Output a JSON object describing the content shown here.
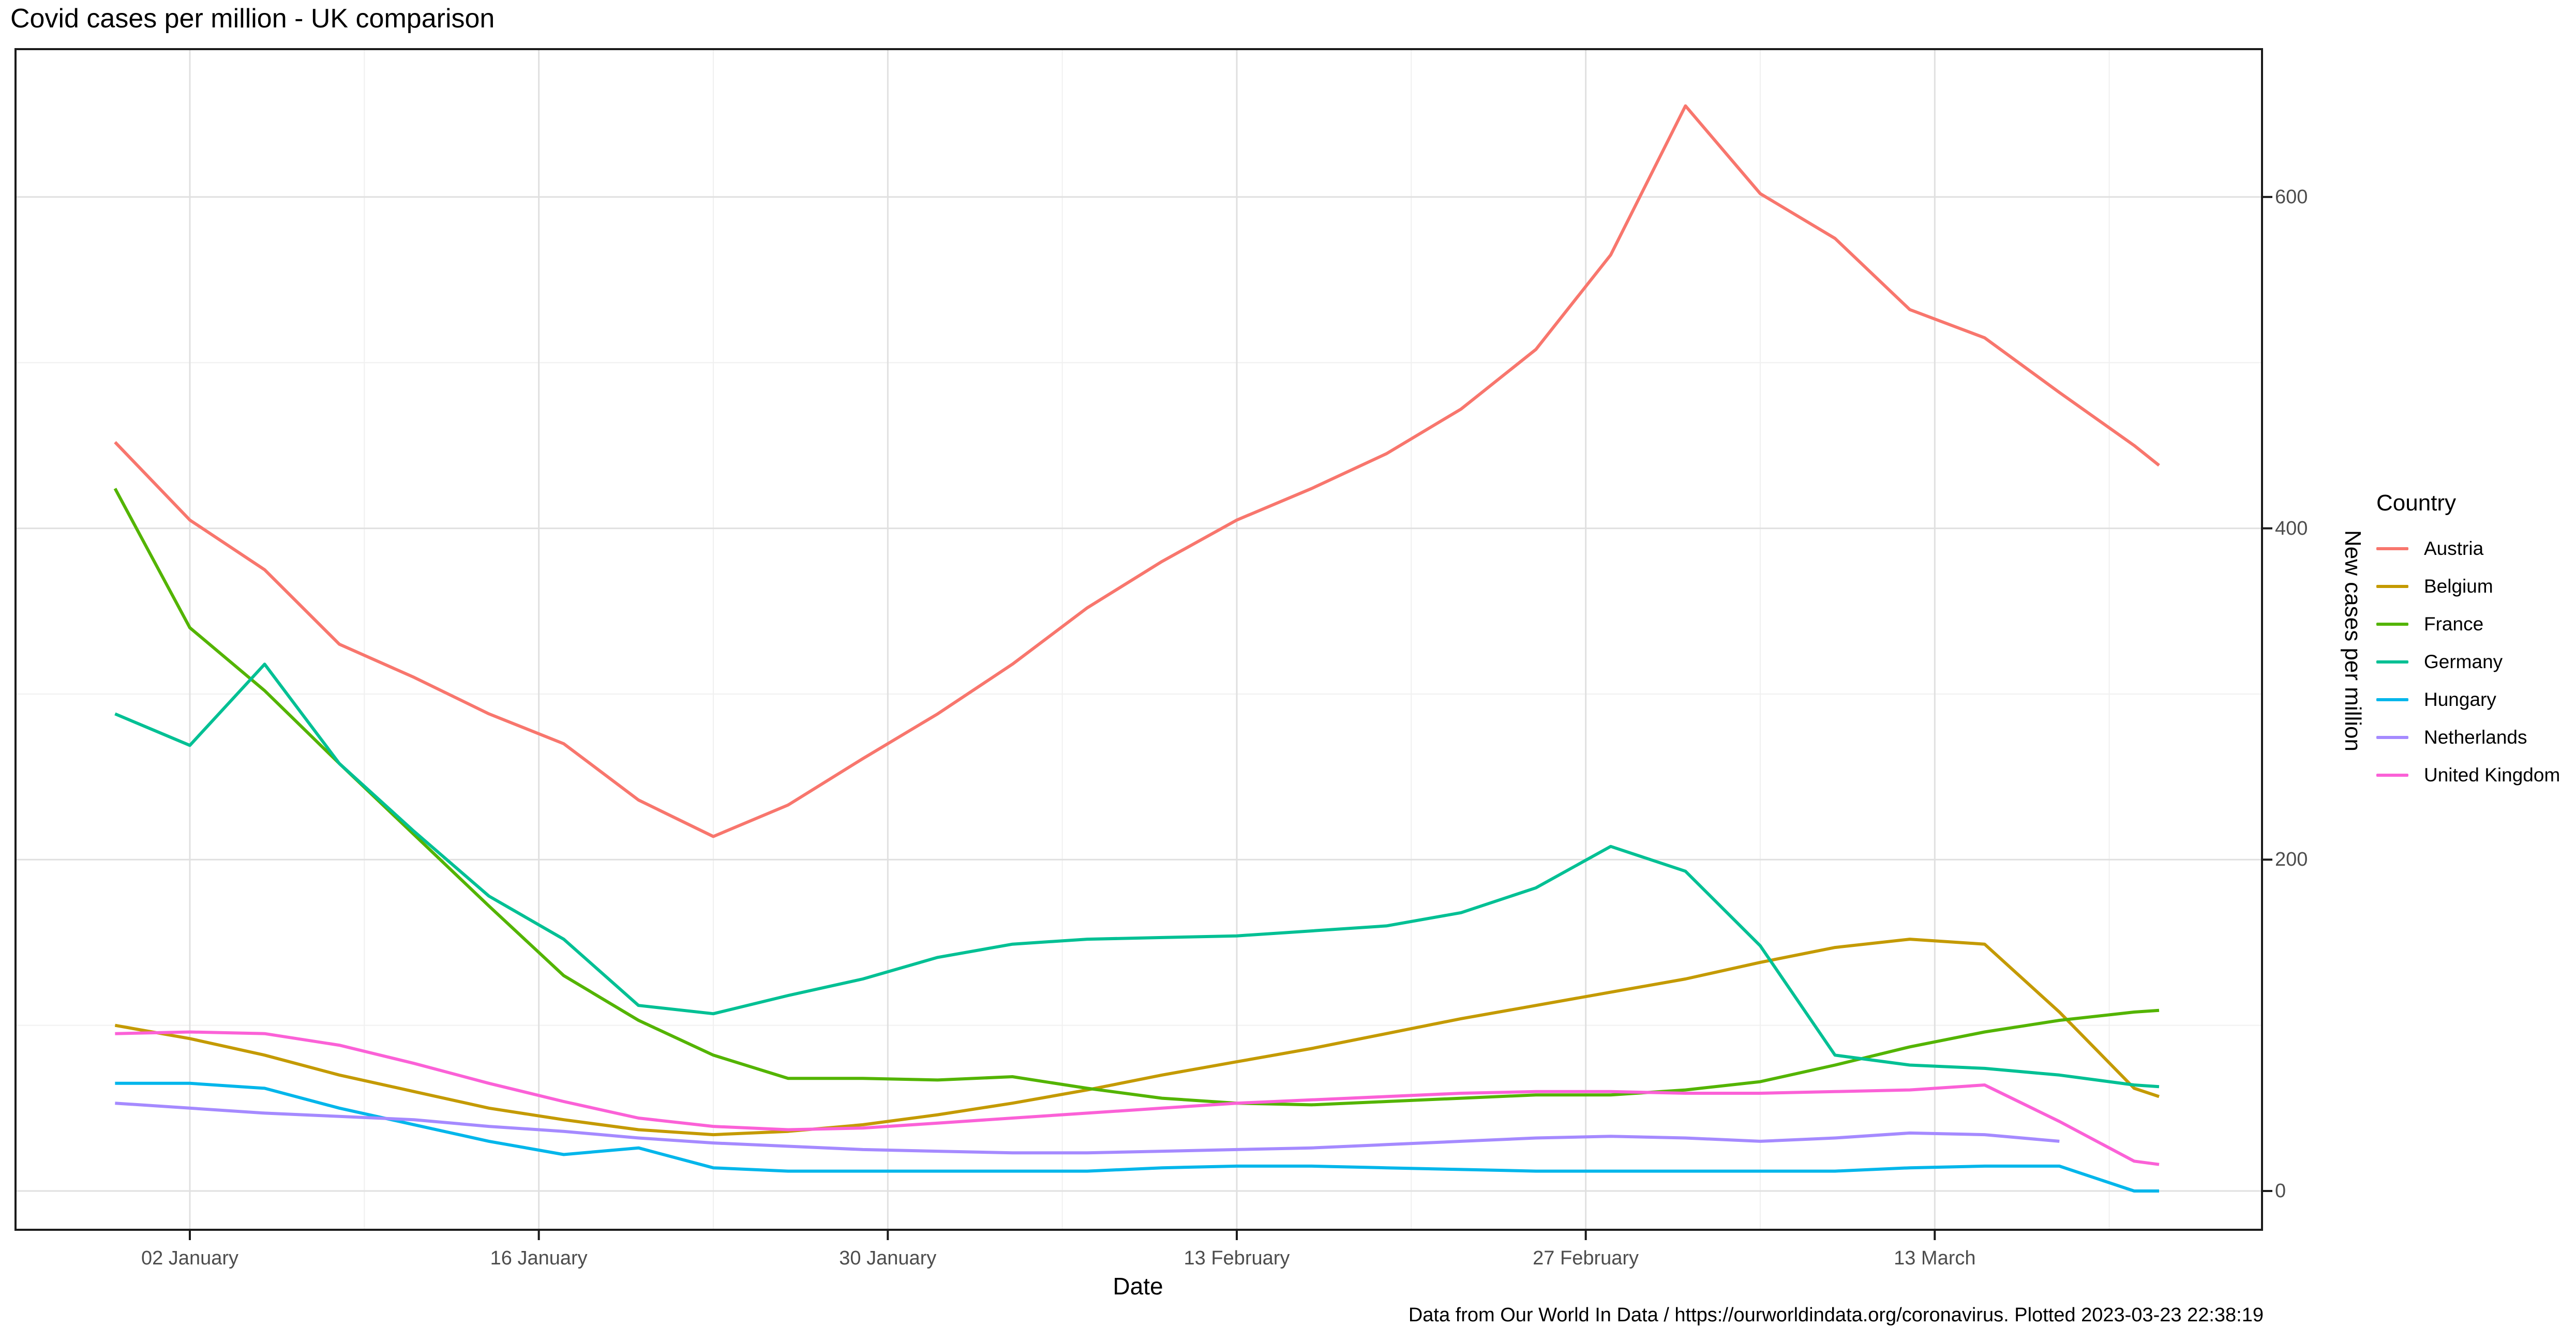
{
  "title": "Covid cases per million - UK comparison",
  "caption": "Data from Our World In Data / https://ourworldindata.org/coronavirus. Plotted 2023-03-23 22:38:19",
  "axes": {
    "x": {
      "title": "Date",
      "ticks": [
        "02 January",
        "16 January",
        "30 January",
        "13 February",
        "27 February",
        "13 March"
      ],
      "tick_day_offsets": [
        3,
        17,
        31,
        45,
        59,
        73
      ],
      "minor_day_offsets": [
        10,
        24,
        38,
        52,
        66,
        80
      ]
    },
    "y": {
      "title": "New cases per million",
      "ticks": [
        "0",
        "200",
        "400",
        "600"
      ],
      "tick_values": [
        0,
        200,
        400,
        600
      ],
      "minor_values": [
        100,
        300,
        500
      ]
    }
  },
  "legend": {
    "title": "Country",
    "entries": [
      "Austria",
      "Belgium",
      "France",
      "Germany",
      "Hungary",
      "Netherlands",
      "United Kingdom"
    ]
  },
  "chart_data": {
    "type": "line",
    "title": "Covid cases per million - UK comparison",
    "xlabel": "Date",
    "ylabel": "New cases per million",
    "ylim": [
      0,
      680
    ],
    "grid": true,
    "legend_position": "right",
    "dates": [
      "2022-12-30",
      "2023-01-02",
      "2023-01-05",
      "2023-01-08",
      "2023-01-11",
      "2023-01-14",
      "2023-01-17",
      "2023-01-20",
      "2023-01-23",
      "2023-01-26",
      "2023-01-29",
      "2023-02-01",
      "2023-02-04",
      "2023-02-07",
      "2023-02-10",
      "2023-02-13",
      "2023-02-16",
      "2023-02-19",
      "2023-02-22",
      "2023-02-25",
      "2023-02-28",
      "2023-03-03",
      "2023-03-06",
      "2023-03-09",
      "2023-03-12",
      "2023-03-15",
      "2023-03-18",
      "2023-03-21",
      "2023-03-22"
    ],
    "day_offsets": [
      0,
      3,
      6,
      9,
      12,
      15,
      18,
      21,
      24,
      27,
      30,
      33,
      36,
      39,
      42,
      45,
      48,
      51,
      54,
      57,
      60,
      63,
      66,
      69,
      72,
      75,
      78,
      81,
      82
    ],
    "series": [
      {
        "name": "Austria",
        "color": "#F8766D",
        "values": [
          452,
          405,
          375,
          330,
          310,
          288,
          270,
          236,
          214,
          233,
          261,
          288,
          318,
          352,
          380,
          405,
          424,
          445,
          472,
          508,
          565,
          655,
          602,
          575,
          532,
          515,
          482,
          450,
          438
        ]
      },
      {
        "name": "Belgium",
        "color": "#C49A00",
        "values": [
          100,
          92,
          82,
          70,
          60,
          50,
          43,
          37,
          34,
          36,
          40,
          46,
          53,
          61,
          70,
          78,
          86,
          95,
          104,
          112,
          120,
          128,
          138,
          147,
          152,
          149,
          108,
          62,
          57
        ]
      },
      {
        "name": "France",
        "color": "#53B400",
        "values": [
          424,
          340,
          302,
          258,
          215,
          172,
          130,
          103,
          82,
          68,
          68,
          67,
          69,
          62,
          56,
          53,
          52,
          54,
          56,
          58,
          58,
          61,
          66,
          76,
          87,
          96,
          103,
          108,
          109
        ]
      },
      {
        "name": "Germany",
        "color": "#00C094",
        "values": [
          288,
          269,
          318,
          258,
          217,
          178,
          152,
          112,
          107,
          118,
          128,
          141,
          149,
          152,
          153,
          154,
          157,
          160,
          168,
          183,
          208,
          193,
          148,
          82,
          76,
          74,
          70,
          64,
          63
        ]
      },
      {
        "name": "Hungary",
        "color": "#00B6EB",
        "values": [
          65,
          65,
          62,
          50,
          40,
          30,
          22,
          26,
          14,
          12,
          12,
          12,
          12,
          12,
          14,
          15,
          15,
          14,
          13,
          12,
          12,
          12,
          12,
          12,
          14,
          15,
          15,
          0,
          0
        ]
      },
      {
        "name": "Netherlands",
        "color": "#A58AFF",
        "values": [
          53,
          50,
          47,
          45,
          43,
          39,
          36,
          32,
          29,
          27,
          25,
          24,
          23,
          23,
          24,
          25,
          26,
          28,
          30,
          32,
          33,
          32,
          30,
          32,
          35,
          34,
          30,
          null,
          null
        ]
      },
      {
        "name": "United Kingdom",
        "color": "#FB61D7",
        "values": [
          95,
          96,
          95,
          88,
          77,
          65,
          54,
          44,
          39,
          37,
          38,
          41,
          44,
          47,
          50,
          53,
          55,
          57,
          59,
          60,
          60,
          59,
          59,
          60,
          61,
          64,
          42,
          18,
          16
        ]
      }
    ]
  }
}
